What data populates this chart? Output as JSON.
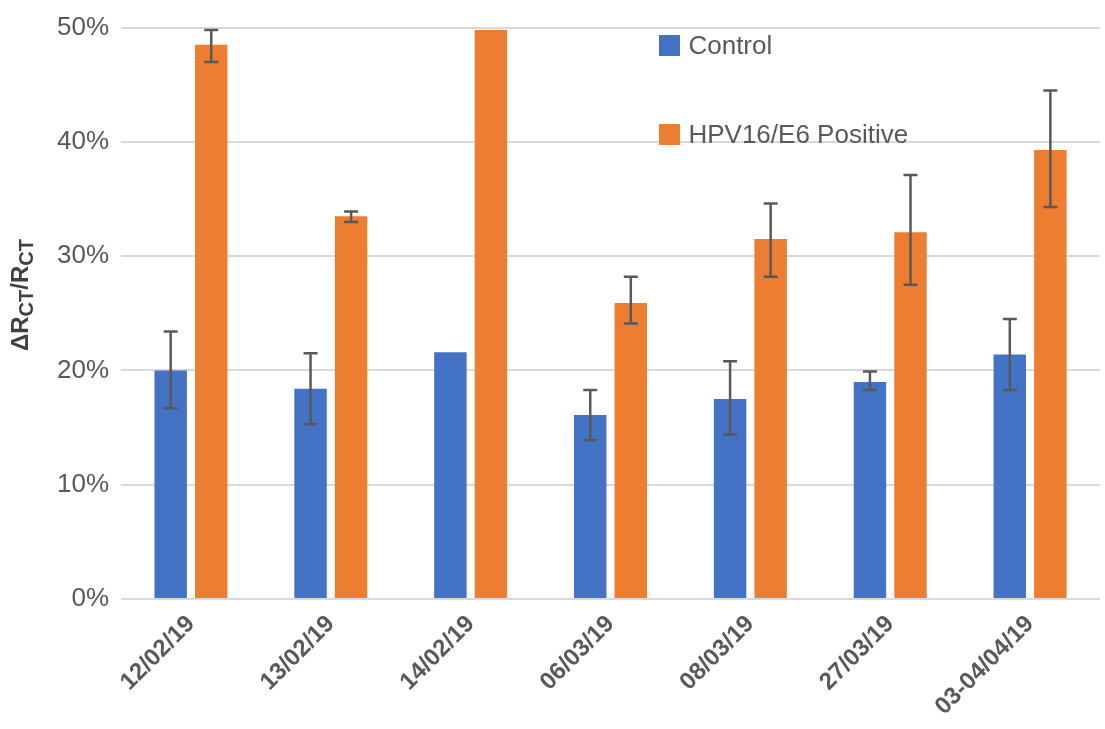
{
  "chart_data": {
    "type": "bar",
    "ylabel": "ΔR$_{CT}$/R$_{CT}$",
    "categories": [
      "12/02/19",
      "13/02/19",
      "14/02/19",
      "06/03/19",
      "08/03/19",
      "27/03/19",
      "03-04/04/19"
    ],
    "series": [
      {
        "name": "Control",
        "color": "#4472c4",
        "values": [
          20.0,
          18.4,
          21.6,
          16.1,
          17.5,
          19.0,
          21.4
        ],
        "errors": [
          [
            16.7,
            23.4
          ],
          [
            15.3,
            21.5
          ],
          null,
          [
            13.9,
            18.3
          ],
          [
            14.4,
            20.8
          ],
          [
            18.3,
            19.9
          ],
          [
            18.3,
            24.5
          ]
        ]
      },
      {
        "name": "HPV16/E6 Positive",
        "color": "#ed7d31",
        "values": [
          48.5,
          33.5,
          49.8,
          25.9,
          31.5,
          32.1,
          39.3
        ],
        "errors": [
          [
            47.0,
            49.8
          ],
          [
            33.0,
            33.9
          ],
          null,
          [
            24.1,
            28.2
          ],
          [
            28.2,
            34.6
          ],
          [
            27.5,
            37.1
          ],
          [
            34.3,
            44.5
          ]
        ]
      }
    ],
    "ylim": [
      0,
      50
    ],
    "yticks": [
      {
        "value": 0,
        "label": "0%"
      },
      {
        "value": 10,
        "label": "10%"
      },
      {
        "value": 20,
        "label": "20%"
      },
      {
        "value": 30,
        "label": "30%"
      },
      {
        "value": 40,
        "label": "40%"
      },
      {
        "value": 50,
        "label": "50%"
      }
    ],
    "grid": "y",
    "legend": "top right"
  }
}
